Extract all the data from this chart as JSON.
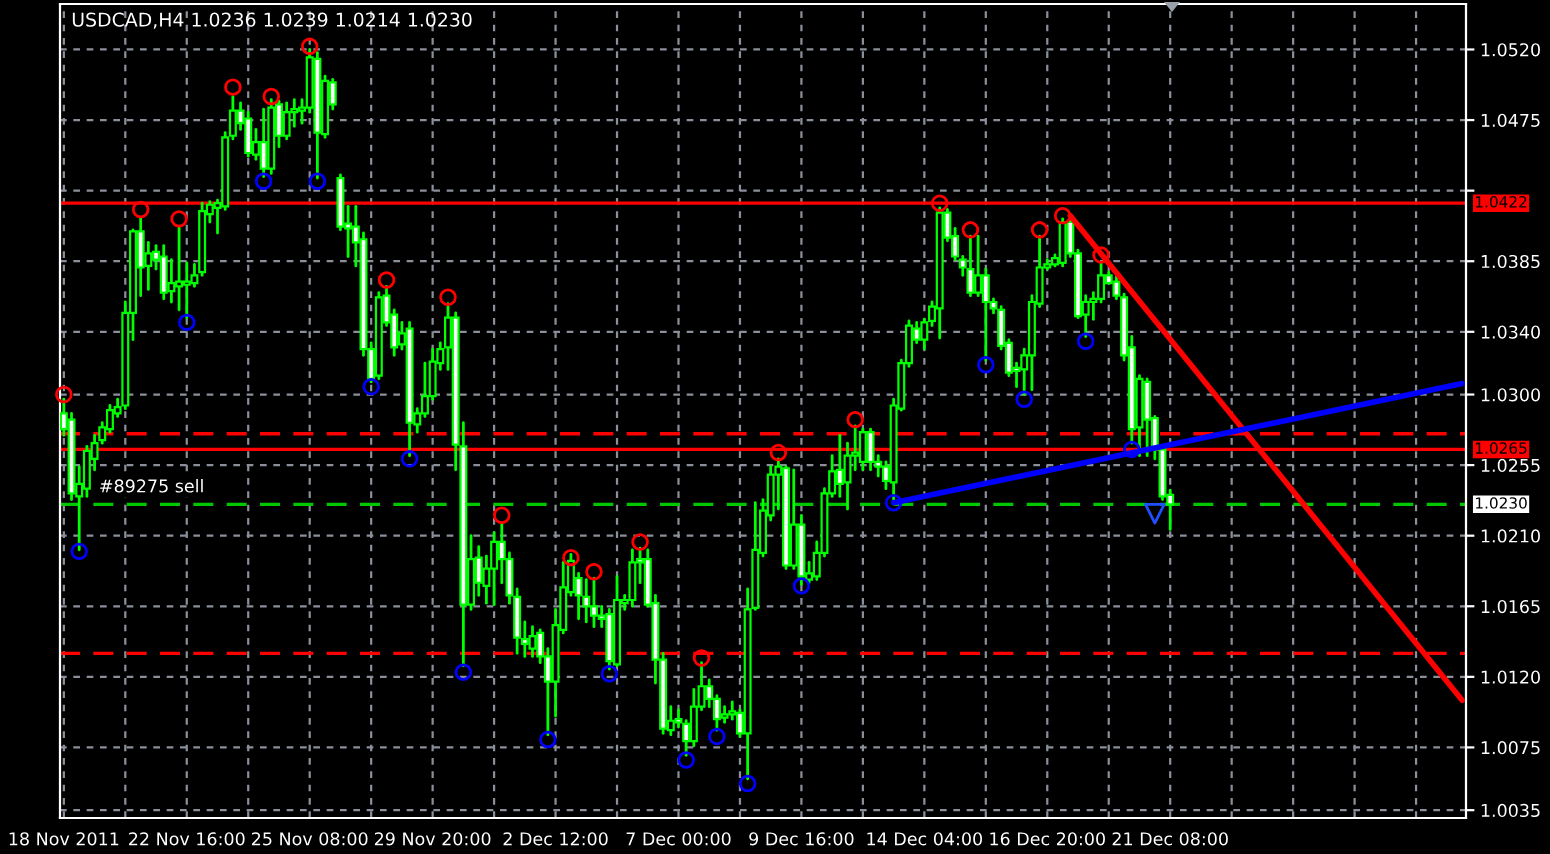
{
  "chart_data": {
    "type": "candlestick",
    "title": "USDCAD,H4 1.0236 1.0239 1.0214 1.0230",
    "color": "#00ff00",
    "categories": [
      "18 Nov 2011",
      null,
      null,
      null,
      null,
      null,
      null,
      null,
      null,
      null,
      null,
      null,
      null,
      null,
      null,
      null,
      "22 Nov 16:00",
      null,
      null,
      null,
      null,
      null,
      null,
      null,
      null,
      null,
      null,
      null,
      null,
      null,
      null,
      null,
      "25 Nov 08:00",
      null,
      null,
      null,
      null,
      null,
      null,
      null,
      null,
      null,
      null,
      null,
      null,
      null,
      null,
      null,
      "29 Nov 20:00",
      null,
      null,
      null,
      null,
      null,
      null,
      null,
      null,
      null,
      null,
      null,
      null,
      null,
      null,
      null,
      "2 Dec 12:00",
      null,
      null,
      null,
      null,
      null,
      null,
      null,
      null,
      null,
      null,
      null,
      null,
      null,
      null,
      null,
      "7 Dec 00:00",
      null,
      null,
      null,
      null,
      null,
      null,
      null,
      null,
      null,
      null,
      null,
      null,
      null,
      null,
      null,
      "9 Dec 16:00",
      null,
      null,
      null,
      null,
      null,
      null,
      null,
      null,
      null,
      null,
      null,
      null,
      null,
      null,
      null,
      "14 Dec 04:00",
      null,
      null,
      null,
      null,
      null,
      null,
      null,
      null,
      null,
      null,
      null,
      null,
      null,
      null,
      null,
      "16 Dec 20:00",
      null,
      null,
      null,
      null,
      null,
      null,
      null,
      null,
      null,
      null,
      null,
      null,
      null,
      null,
      null,
      "21 Dec 08:00",
      null,
      null,
      null,
      null,
      null,
      null,
      null,
      null,
      null,
      null,
      null,
      null,
      null,
      null,
      null,
      null,
      null,
      null,
      null,
      null,
      null,
      null,
      null,
      null,
      null,
      null,
      null,
      null,
      null,
      null,
      null,
      null,
      null,
      null,
      null,
      null,
      null,
      null
    ],
    "ohlc": [
      [
        1.0288,
        1.0297,
        1.0274,
        1.0278
      ],
      [
        1.0284,
        1.0288,
        1.0233,
        1.0237
      ],
      [
        1.0235,
        1.0254,
        1.0201,
        1.0243
      ],
      [
        1.024,
        1.0267,
        1.0235,
        1.0264
      ],
      [
        1.0259,
        1.0274,
        1.0252,
        1.0269
      ],
      [
        1.0271,
        1.0282,
        1.0269,
        1.0279
      ],
      [
        1.0278,
        1.0293,
        1.0276,
        1.029
      ],
      [
        1.0288,
        1.0297,
        1.0286,
        1.0292
      ],
      [
        1.0293,
        1.0359,
        1.0291,
        1.0352
      ],
      [
        1.0352,
        1.0405,
        1.0335,
        1.0404
      ],
      [
        1.0404,
        1.0413,
        1.0363,
        1.0381
      ],
      [
        1.0382,
        1.0397,
        1.0367,
        1.039
      ],
      [
        1.0391,
        1.0395,
        1.038,
        1.0386
      ],
      [
        1.0388,
        1.0395,
        1.0361,
        1.0365
      ],
      [
        1.0366,
        1.0386,
        1.0359,
        1.0371
      ],
      [
        1.0369,
        1.0407,
        1.0354,
        1.0372
      ],
      [
        1.037,
        1.0384,
        1.0349,
        1.0372
      ],
      [
        1.0371,
        1.0383,
        1.0369,
        1.0376
      ],
      [
        1.0378,
        1.0422,
        1.0376,
        1.0417
      ],
      [
        1.0415,
        1.0423,
        1.041,
        1.0421
      ],
      [
        1.0419,
        1.0424,
        1.0403,
        1.0422
      ],
      [
        1.042,
        1.0467,
        1.0418,
        1.0464
      ],
      [
        1.0465,
        1.049,
        1.0463,
        1.0481
      ],
      [
        1.0481,
        1.0486,
        1.0469,
        1.0473
      ],
      [
        1.0476,
        1.048,
        1.0452,
        1.0454
      ],
      [
        1.0453,
        1.0469,
        1.045,
        1.0461
      ],
      [
        1.0461,
        1.0482,
        1.0439,
        1.0444
      ],
      [
        1.0444,
        1.0488,
        1.0441,
        1.0483
      ],
      [
        1.0485,
        1.0487,
        1.0458,
        1.0465
      ],
      [
        1.0465,
        1.0486,
        1.0463,
        1.048
      ],
      [
        1.048,
        1.0488,
        1.0471,
        1.0482
      ],
      [
        1.0481,
        1.0488,
        1.0473,
        1.0483
      ],
      [
        1.0483,
        1.052,
        1.048,
        1.0515
      ],
      [
        1.0514,
        1.0518,
        1.0438,
        1.0467
      ],
      [
        1.0466,
        1.0503,
        1.0464,
        1.05
      ],
      [
        1.0499,
        1.0501,
        1.0482,
        1.0485
      ],
      [
        1.0438,
        1.044,
        1.0405,
        1.0407
      ],
      [
        1.0409,
        1.042,
        1.0388,
        1.0406
      ],
      [
        1.0407,
        1.042,
        1.0382,
        1.0397
      ],
      [
        1.0399,
        1.0403,
        1.0325,
        1.0329
      ],
      [
        1.0329,
        1.0333,
        1.0308,
        1.031
      ],
      [
        1.0312,
        1.0365,
        1.031,
        1.0362
      ],
      [
        1.0363,
        1.0369,
        1.0344,
        1.0346
      ],
      [
        1.0351,
        1.0354,
        1.0325,
        1.033
      ],
      [
        1.0332,
        1.0346,
        1.0329,
        1.0339
      ],
      [
        1.0342,
        1.0346,
        1.0261,
        1.0282
      ],
      [
        1.0281,
        1.0291,
        1.0276,
        1.0288
      ],
      [
        1.0288,
        1.032,
        1.0286,
        1.0299
      ],
      [
        1.0299,
        1.0329,
        1.0297,
        1.0321
      ],
      [
        1.032,
        1.0333,
        1.0316,
        1.0329
      ],
      [
        1.033,
        1.0358,
        1.0316,
        1.0349
      ],
      [
        1.0349,
        1.0352,
        1.0252,
        1.0268
      ],
      [
        1.0267,
        1.0282,
        1.0127,
        1.0166
      ],
      [
        1.0166,
        1.021,
        1.0163,
        1.0195
      ],
      [
        1.0196,
        1.0203,
        1.0172,
        1.018
      ],
      [
        1.0178,
        1.0197,
        1.0167,
        1.0189
      ],
      [
        1.0189,
        1.0212,
        1.0166,
        1.0206
      ],
      [
        1.0206,
        1.0218,
        1.018,
        1.0195
      ],
      [
        1.0195,
        1.0199,
        1.0167,
        1.0172
      ],
      [
        1.0171,
        1.0176,
        1.0135,
        1.0145
      ],
      [
        1.0144,
        1.0155,
        1.0133,
        1.0141
      ],
      [
        1.0138,
        1.0152,
        1.0133,
        1.0146
      ],
      [
        1.0148,
        1.015,
        1.0129,
        1.0133
      ],
      [
        1.0133,
        1.0138,
        1.0083,
        1.0117
      ],
      [
        1.0117,
        1.0163,
        1.0095,
        1.0153
      ],
      [
        1.015,
        1.0193,
        1.0148,
        1.0177
      ],
      [
        1.0174,
        1.0198,
        1.0172,
        1.0194
      ],
      [
        1.0183,
        1.0186,
        1.0157,
        1.0172
      ],
      [
        1.0171,
        1.0182,
        1.0155,
        1.0165
      ],
      [
        1.0165,
        1.0183,
        1.0152,
        1.0159
      ],
      [
        1.0159,
        1.0165,
        1.0152,
        1.0157
      ],
      [
        1.016,
        1.0163,
        1.0125,
        1.013
      ],
      [
        1.0128,
        1.0184,
        1.0127,
        1.0169
      ],
      [
        1.0167,
        1.0172,
        1.0163,
        1.0169
      ],
      [
        1.0169,
        1.0201,
        1.0165,
        1.0193
      ],
      [
        1.0195,
        1.0202,
        1.018,
        1.0193
      ],
      [
        1.0195,
        1.0201,
        1.0165,
        1.0166
      ],
      [
        1.0167,
        1.0172,
        1.0116,
        1.0131
      ],
      [
        1.0131,
        1.0135,
        1.0084,
        1.0087
      ],
      [
        1.0086,
        1.0101,
        1.0083,
        1.0092
      ],
      [
        1.0093,
        1.0099,
        1.0088,
        1.0091
      ],
      [
        1.009,
        1.0092,
        1.007,
        1.0079
      ],
      [
        1.0079,
        1.0112,
        1.0076,
        1.0101
      ],
      [
        1.0101,
        1.0129,
        1.0099,
        1.0114
      ],
      [
        1.0114,
        1.0118,
        1.0101,
        1.0106
      ],
      [
        1.0106,
        1.0108,
        1.0086,
        1.0093
      ],
      [
        1.0094,
        1.0101,
        1.0091,
        1.0096
      ],
      [
        1.0096,
        1.0104,
        1.0093,
        1.0098
      ],
      [
        1.0097,
        1.0099,
        1.0082,
        1.0084
      ],
      [
        1.0084,
        1.0176,
        1.0055,
        1.0163
      ],
      [
        1.0164,
        1.0231,
        1.0163,
        1.0201
      ],
      [
        1.0199,
        1.0233,
        1.0197,
        1.0226
      ],
      [
        1.0223,
        1.0254,
        1.022,
        1.0249
      ],
      [
        1.0249,
        1.0259,
        1.0227,
        1.0254
      ],
      [
        1.0253,
        1.0254,
        1.0189,
        1.0191
      ],
      [
        1.0191,
        1.0252,
        1.0189,
        1.0217
      ],
      [
        1.0217,
        1.0223,
        1.0179,
        1.0184
      ],
      [
        1.0182,
        1.0193,
        1.018,
        1.0186
      ],
      [
        1.0184,
        1.0206,
        1.0182,
        1.0199
      ],
      [
        1.0199,
        1.024,
        1.0197,
        1.0237
      ],
      [
        1.0237,
        1.0261,
        1.0235,
        1.0251
      ],
      [
        1.0252,
        1.0274,
        1.0235,
        1.0243
      ],
      [
        1.0244,
        1.0269,
        1.0227,
        1.0261
      ],
      [
        1.0261,
        1.028,
        1.0252,
        1.0263
      ],
      [
        1.0257,
        1.0278,
        1.0252,
        1.0276
      ],
      [
        1.0276,
        1.0278,
        1.0252,
        1.0257
      ],
      [
        1.0257,
        1.0261,
        1.0248,
        1.0254
      ],
      [
        1.0254,
        1.0257,
        1.024,
        1.0245
      ],
      [
        1.0244,
        1.0297,
        1.0233,
        1.0293
      ],
      [
        1.0291,
        1.0322,
        1.029,
        1.032
      ],
      [
        1.032,
        1.0347,
        1.0318,
        1.0344
      ],
      [
        1.0342,
        1.0346,
        1.0333,
        1.0335
      ],
      [
        1.0335,
        1.0348,
        1.0329,
        1.0346
      ],
      [
        1.0347,
        1.0359,
        1.0344,
        1.0356
      ],
      [
        1.0355,
        1.0419,
        1.0336,
        1.0416
      ],
      [
        1.0416,
        1.0418,
        1.0398,
        1.04
      ],
      [
        1.0401,
        1.0406,
        1.0386,
        1.0388
      ],
      [
        1.0386,
        1.0388,
        1.0376,
        1.0381
      ],
      [
        1.038,
        1.0401,
        1.0363,
        1.0365
      ],
      [
        1.0365,
        1.0401,
        1.0363,
        1.0376
      ],
      [
        1.0376,
        1.038,
        1.0322,
        1.0359
      ],
      [
        1.0359,
        1.0361,
        1.0352,
        1.0355
      ],
      [
        1.0354,
        1.0356,
        1.0329,
        1.0331
      ],
      [
        1.0333,
        1.0335,
        1.0312,
        1.0314
      ],
      [
        1.0317,
        1.032,
        1.0305,
        1.0315
      ],
      [
        1.0316,
        1.0329,
        1.03,
        1.0325
      ],
      [
        1.0325,
        1.0363,
        1.0303,
        1.0359
      ],
      [
        1.0358,
        1.0401,
        1.0356,
        1.0381
      ],
      [
        1.0381,
        1.0386,
        1.038,
        1.0383
      ],
      [
        1.0383,
        1.0389,
        1.0382,
        1.0387
      ],
      [
        1.0384,
        1.0412,
        1.0382,
        1.041
      ],
      [
        1.041,
        1.0412,
        1.0388,
        1.039
      ],
      [
        1.039,
        1.0392,
        1.0349,
        1.035
      ],
      [
        1.0351,
        1.0363,
        1.0337,
        1.0359
      ],
      [
        1.0359,
        1.0365,
        1.0348,
        1.0361
      ],
      [
        1.0361,
        1.0384,
        1.0359,
        1.0376
      ],
      [
        1.0376,
        1.0378,
        1.0371,
        1.0371
      ],
      [
        1.0372,
        1.0375,
        1.0361,
        1.0363
      ],
      [
        1.0362,
        1.0364,
        1.0322,
        1.0325
      ],
      [
        1.033,
        1.0337,
        1.0269,
        1.0278
      ],
      [
        1.0279,
        1.0312,
        1.0261,
        1.031
      ],
      [
        1.0308,
        1.031,
        1.0261,
        1.0284
      ],
      [
        1.0285,
        1.0286,
        1.0259,
        1.0265
      ],
      [
        1.0265,
        1.0267,
        1.0233,
        1.0235
      ],
      [
        1.0236,
        1.0239,
        1.0214,
        1.023
      ],
      null,
      null,
      null,
      null,
      null,
      null,
      null,
      null,
      null,
      null,
      null,
      null,
      null,
      null,
      null,
      null,
      null,
      null,
      null,
      null,
      null,
      null,
      null,
      null,
      null,
      null,
      null,
      null,
      null,
      null,
      null,
      null,
      null,
      null,
      null,
      null,
      null,
      null
    ],
    "series": [
      {
        "type": "scatter",
        "marker": "circle",
        "color": "#ff0000",
        "values": [
          1.03,
          null,
          null,
          null,
          null,
          null,
          null,
          null,
          null,
          null,
          1.0418,
          null,
          null,
          null,
          null,
          1.0412,
          null,
          null,
          null,
          null,
          null,
          null,
          1.0496,
          null,
          null,
          null,
          null,
          1.049,
          null,
          null,
          null,
          null,
          1.0522,
          null,
          null,
          null,
          null,
          null,
          null,
          null,
          null,
          null,
          1.0373,
          null,
          null,
          null,
          null,
          null,
          null,
          null,
          1.0362,
          null,
          null,
          null,
          null,
          null,
          null,
          1.0223,
          null,
          null,
          null,
          null,
          null,
          null,
          null,
          null,
          1.0196,
          null,
          null,
          1.0187,
          null,
          null,
          null,
          null,
          null,
          1.0206,
          null,
          null,
          null,
          null,
          null,
          null,
          null,
          1.0132,
          null,
          null,
          null,
          null,
          null,
          null,
          null,
          null,
          null,
          1.0263,
          null,
          null,
          null,
          null,
          null,
          null,
          null,
          null,
          null,
          1.0284,
          null,
          null,
          null,
          null,
          null,
          null,
          null,
          null,
          null,
          null,
          1.0422,
          null,
          null,
          null,
          1.0405,
          null,
          null,
          null,
          null,
          null,
          null,
          null,
          null,
          1.0405,
          null,
          null,
          1.0414,
          null,
          null,
          null,
          null,
          1.0389,
          null,
          null,
          null,
          null,
          null,
          null,
          null,
          null,
          null,
          null,
          null,
          null,
          null,
          null,
          null,
          null,
          null,
          null,
          null,
          null,
          null,
          null,
          null,
          null,
          null,
          null,
          null,
          null,
          null,
          null,
          null,
          null,
          null,
          null,
          null,
          null,
          null,
          null,
          null,
          null,
          null,
          null,
          null,
          null,
          null,
          null,
          null
        ]
      },
      {
        "type": "scatter",
        "marker": "circle",
        "color": "#0000ff",
        "values": [
          null,
          null,
          1.02,
          null,
          null,
          null,
          null,
          null,
          null,
          null,
          null,
          null,
          null,
          null,
          null,
          null,
          1.0346,
          null,
          null,
          null,
          null,
          null,
          null,
          null,
          null,
          null,
          1.0436,
          null,
          null,
          null,
          null,
          null,
          null,
          1.0436,
          null,
          null,
          null,
          null,
          null,
          null,
          1.0305,
          null,
          null,
          null,
          null,
          1.0259,
          null,
          null,
          null,
          null,
          null,
          null,
          1.0123,
          null,
          null,
          null,
          null,
          null,
          null,
          null,
          null,
          null,
          null,
          1.008,
          null,
          null,
          null,
          null,
          null,
          null,
          null,
          1.0122,
          null,
          null,
          null,
          null,
          null,
          null,
          null,
          null,
          null,
          1.0067,
          null,
          null,
          null,
          1.0082,
          null,
          null,
          null,
          1.0052,
          null,
          null,
          null,
          null,
          null,
          null,
          1.0178,
          null,
          null,
          null,
          null,
          null,
          null,
          null,
          null,
          null,
          null,
          null,
          1.0231,
          null,
          null,
          null,
          null,
          null,
          null,
          null,
          null,
          null,
          null,
          null,
          1.0319,
          null,
          null,
          null,
          null,
          1.0297,
          null,
          null,
          null,
          null,
          null,
          null,
          null,
          1.0334,
          null,
          null,
          null,
          null,
          null,
          1.0265,
          null,
          null,
          null,
          null,
          null,
          null,
          null,
          null,
          null,
          null,
          null,
          null,
          null,
          null,
          null,
          null,
          null,
          null,
          null,
          null,
          null,
          null,
          null,
          null,
          null,
          null,
          null,
          null,
          null,
          null,
          null,
          null,
          null,
          null,
          null,
          null,
          null,
          null,
          null,
          null,
          null,
          null,
          null
        ]
      },
      {
        "type": "scatter",
        "marker": "triangle",
        "color": "#1e50ff",
        "values": [
          null,
          null,
          null,
          null,
          null,
          null,
          null,
          null,
          null,
          null,
          null,
          null,
          null,
          null,
          null,
          null,
          null,
          null,
          null,
          null,
          null,
          null,
          null,
          null,
          null,
          null,
          null,
          null,
          null,
          null,
          null,
          null,
          null,
          null,
          null,
          null,
          null,
          null,
          null,
          null,
          null,
          null,
          null,
          null,
          null,
          null,
          null,
          null,
          null,
          null,
          null,
          null,
          null,
          null,
          null,
          null,
          null,
          null,
          null,
          null,
          null,
          null,
          null,
          null,
          null,
          null,
          null,
          null,
          null,
          null,
          null,
          null,
          null,
          null,
          null,
          null,
          null,
          null,
          null,
          null,
          null,
          null,
          null,
          null,
          null,
          null,
          null,
          null,
          null,
          null,
          null,
          null,
          null,
          null,
          null,
          null,
          null,
          null,
          null,
          null,
          null,
          null,
          null,
          null,
          null,
          null,
          null,
          null,
          null,
          null,
          null,
          null,
          null,
          null,
          null,
          null,
          null,
          null,
          null,
          null,
          null,
          null,
          null,
          null,
          null,
          null,
          null,
          null,
          null,
          null,
          null,
          null,
          null,
          null,
          null,
          null,
          null,
          null,
          null,
          null,
          null,
          null,
          1.0224,
          null,
          null,
          null,
          null,
          null,
          null,
          null,
          null,
          null,
          null,
          null,
          null,
          null,
          null,
          null,
          null,
          null,
          null,
          null,
          null,
          null,
          null,
          null,
          null,
          null,
          null,
          null,
          null,
          null,
          null,
          null,
          null,
          null,
          null,
          null,
          null,
          null,
          null,
          null,
          null
        ]
      },
      {
        "type": "line",
        "color": "#ff0000",
        "values": [
          null,
          null,
          null,
          null,
          null,
          null,
          null,
          null,
          null,
          null,
          null,
          null,
          null,
          null,
          null,
          null,
          null,
          null,
          null,
          null,
          null,
          null,
          null,
          null,
          null,
          null,
          null,
          null,
          null,
          null,
          null,
          null,
          null,
          null,
          null,
          null,
          null,
          null,
          null,
          null,
          null,
          null,
          null,
          null,
          null,
          null,
          null,
          null,
          null,
          null,
          null,
          null,
          null,
          null,
          null,
          null,
          null,
          null,
          null,
          null,
          null,
          null,
          null,
          null,
          null,
          null,
          null,
          null,
          null,
          null,
          null,
          null,
          null,
          null,
          null,
          null,
          null,
          null,
          null,
          null,
          null,
          null,
          null,
          null,
          null,
          null,
          null,
          null,
          null,
          null,
          null,
          null,
          null,
          null,
          null,
          null,
          null,
          null,
          null,
          null,
          null,
          null,
          null,
          null,
          null,
          null,
          null,
          null,
          null,
          null,
          null,
          null,
          null,
          null,
          null,
          null,
          null,
          null,
          null,
          null,
          null,
          null,
          null,
          null,
          null,
          null,
          null,
          null,
          null,
          null,
          null,
          1.0414,
          null,
          null,
          null,
          null,
          null,
          null,
          null,
          null,
          null,
          null,
          null,
          null,
          null,
          null,
          null,
          null,
          null,
          null,
          null,
          null,
          null,
          null,
          null,
          null,
          null,
          null,
          null,
          null,
          null,
          null,
          null,
          null,
          null,
          null,
          null,
          null,
          null,
          null,
          null,
          null,
          null,
          null,
          null,
          null,
          null,
          null,
          null,
          null,
          null,
          null,
          1.0105
        ]
      },
      {
        "type": "line",
        "color": "#0000ff",
        "values": [
          null,
          null,
          null,
          null,
          null,
          null,
          null,
          null,
          null,
          null,
          null,
          null,
          null,
          null,
          null,
          null,
          null,
          null,
          null,
          null,
          null,
          null,
          null,
          null,
          null,
          null,
          null,
          null,
          null,
          null,
          null,
          null,
          null,
          null,
          null,
          null,
          null,
          null,
          null,
          null,
          null,
          null,
          null,
          null,
          null,
          null,
          null,
          null,
          null,
          null,
          null,
          null,
          null,
          null,
          null,
          null,
          null,
          null,
          null,
          null,
          null,
          null,
          null,
          null,
          null,
          null,
          null,
          null,
          null,
          null,
          null,
          null,
          null,
          null,
          null,
          null,
          null,
          null,
          null,
          null,
          null,
          null,
          null,
          null,
          null,
          null,
          null,
          null,
          null,
          null,
          null,
          null,
          null,
          null,
          null,
          null,
          null,
          null,
          null,
          null,
          null,
          null,
          null,
          null,
          null,
          null,
          null,
          null,
          1.0231,
          null,
          null,
          null,
          null,
          null,
          null,
          null,
          null,
          null,
          null,
          null,
          null,
          null,
          null,
          null,
          null,
          null,
          null,
          null,
          null,
          null,
          null,
          null,
          null,
          null,
          null,
          null,
          null,
          null,
          null,
          null,
          null,
          null,
          null,
          null,
          null,
          null,
          null,
          null,
          null,
          null,
          null,
          null,
          null,
          null,
          null,
          null,
          null,
          null,
          null,
          null,
          null,
          null,
          null,
          null,
          null,
          null,
          null,
          null,
          null,
          null,
          null,
          null,
          null,
          null,
          null,
          null,
          null,
          null,
          null,
          null,
          null,
          null,
          1.0307
        ]
      }
    ],
    "ref_lines": [
      {
        "axis": "y",
        "value": 1.0422,
        "label": "1.0422",
        "color": "#ff0000",
        "line_style": "solid"
      },
      {
        "axis": "y",
        "value": 1.0265,
        "label": "1.0265",
        "color": "#ff0000",
        "line_style": "solid"
      },
      {
        "axis": "y",
        "value": 1.023,
        "label": "1.0230",
        "color": "#00c800",
        "line_style": "dashed"
      },
      {
        "axis": "y",
        "value": 1.0275,
        "color": "#ff0000",
        "line_style": "dashed"
      },
      {
        "axis": "y",
        "value": 1.0135,
        "color": "#ff0000",
        "line_style": "dashed"
      }
    ],
    "annotations": [
      {
        "text": "#89275 sell",
        "y": 1.023
      }
    ],
    "ylim": [
      1.003,
      1.0549
    ],
    "yticks": [
      {
        "value": 1.052,
        "label": "1.0520"
      },
      {
        "value": 1.0475,
        "label": "1.0475"
      },
      {
        "value": 1.043,
        "label": null
      },
      {
        "value": 1.0385,
        "label": "1.0385"
      },
      {
        "value": 1.034,
        "label": "1.0340"
      },
      {
        "value": 1.03,
        "label": "1.0300"
      },
      {
        "value": 1.0255,
        "label": "1.0255"
      },
      {
        "value": 1.021,
        "label": "1.0210"
      },
      {
        "value": 1.0165,
        "label": "1.0165"
      },
      {
        "value": 1.012,
        "label": "1.0120"
      },
      {
        "value": 1.0075,
        "label": "1.0075"
      },
      {
        "value": 1.0035,
        "label": "1.0035"
      }
    ],
    "grid": true,
    "legend": false
  }
}
